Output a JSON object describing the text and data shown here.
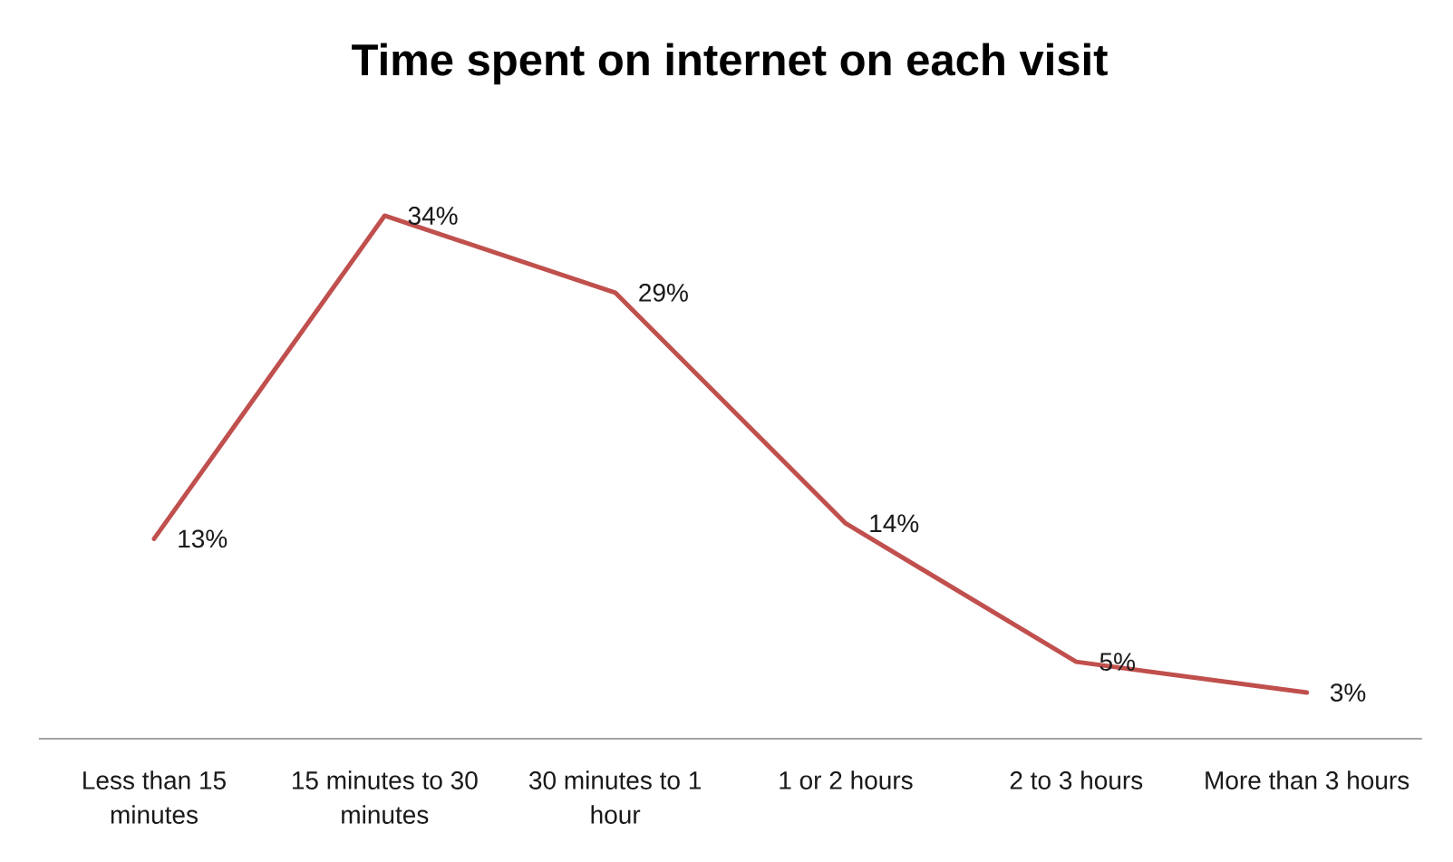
{
  "chart_data": {
    "type": "line",
    "title": "Time spent on internet on each visit",
    "categories": [
      "Less than 15 minutes",
      "15 minutes to 30 minutes",
      "30 minutes to 1 hour",
      "1 or 2 hours",
      "2 to 3 hours",
      "More than 3 hours"
    ],
    "values": [
      13,
      34,
      29,
      14,
      5,
      3
    ],
    "value_labels": [
      "13%",
      "34%",
      "29%",
      "14%",
      "5%",
      "3%"
    ],
    "color": "#c0504d",
    "tick_labels": "x",
    "line_style": "solid"
  }
}
